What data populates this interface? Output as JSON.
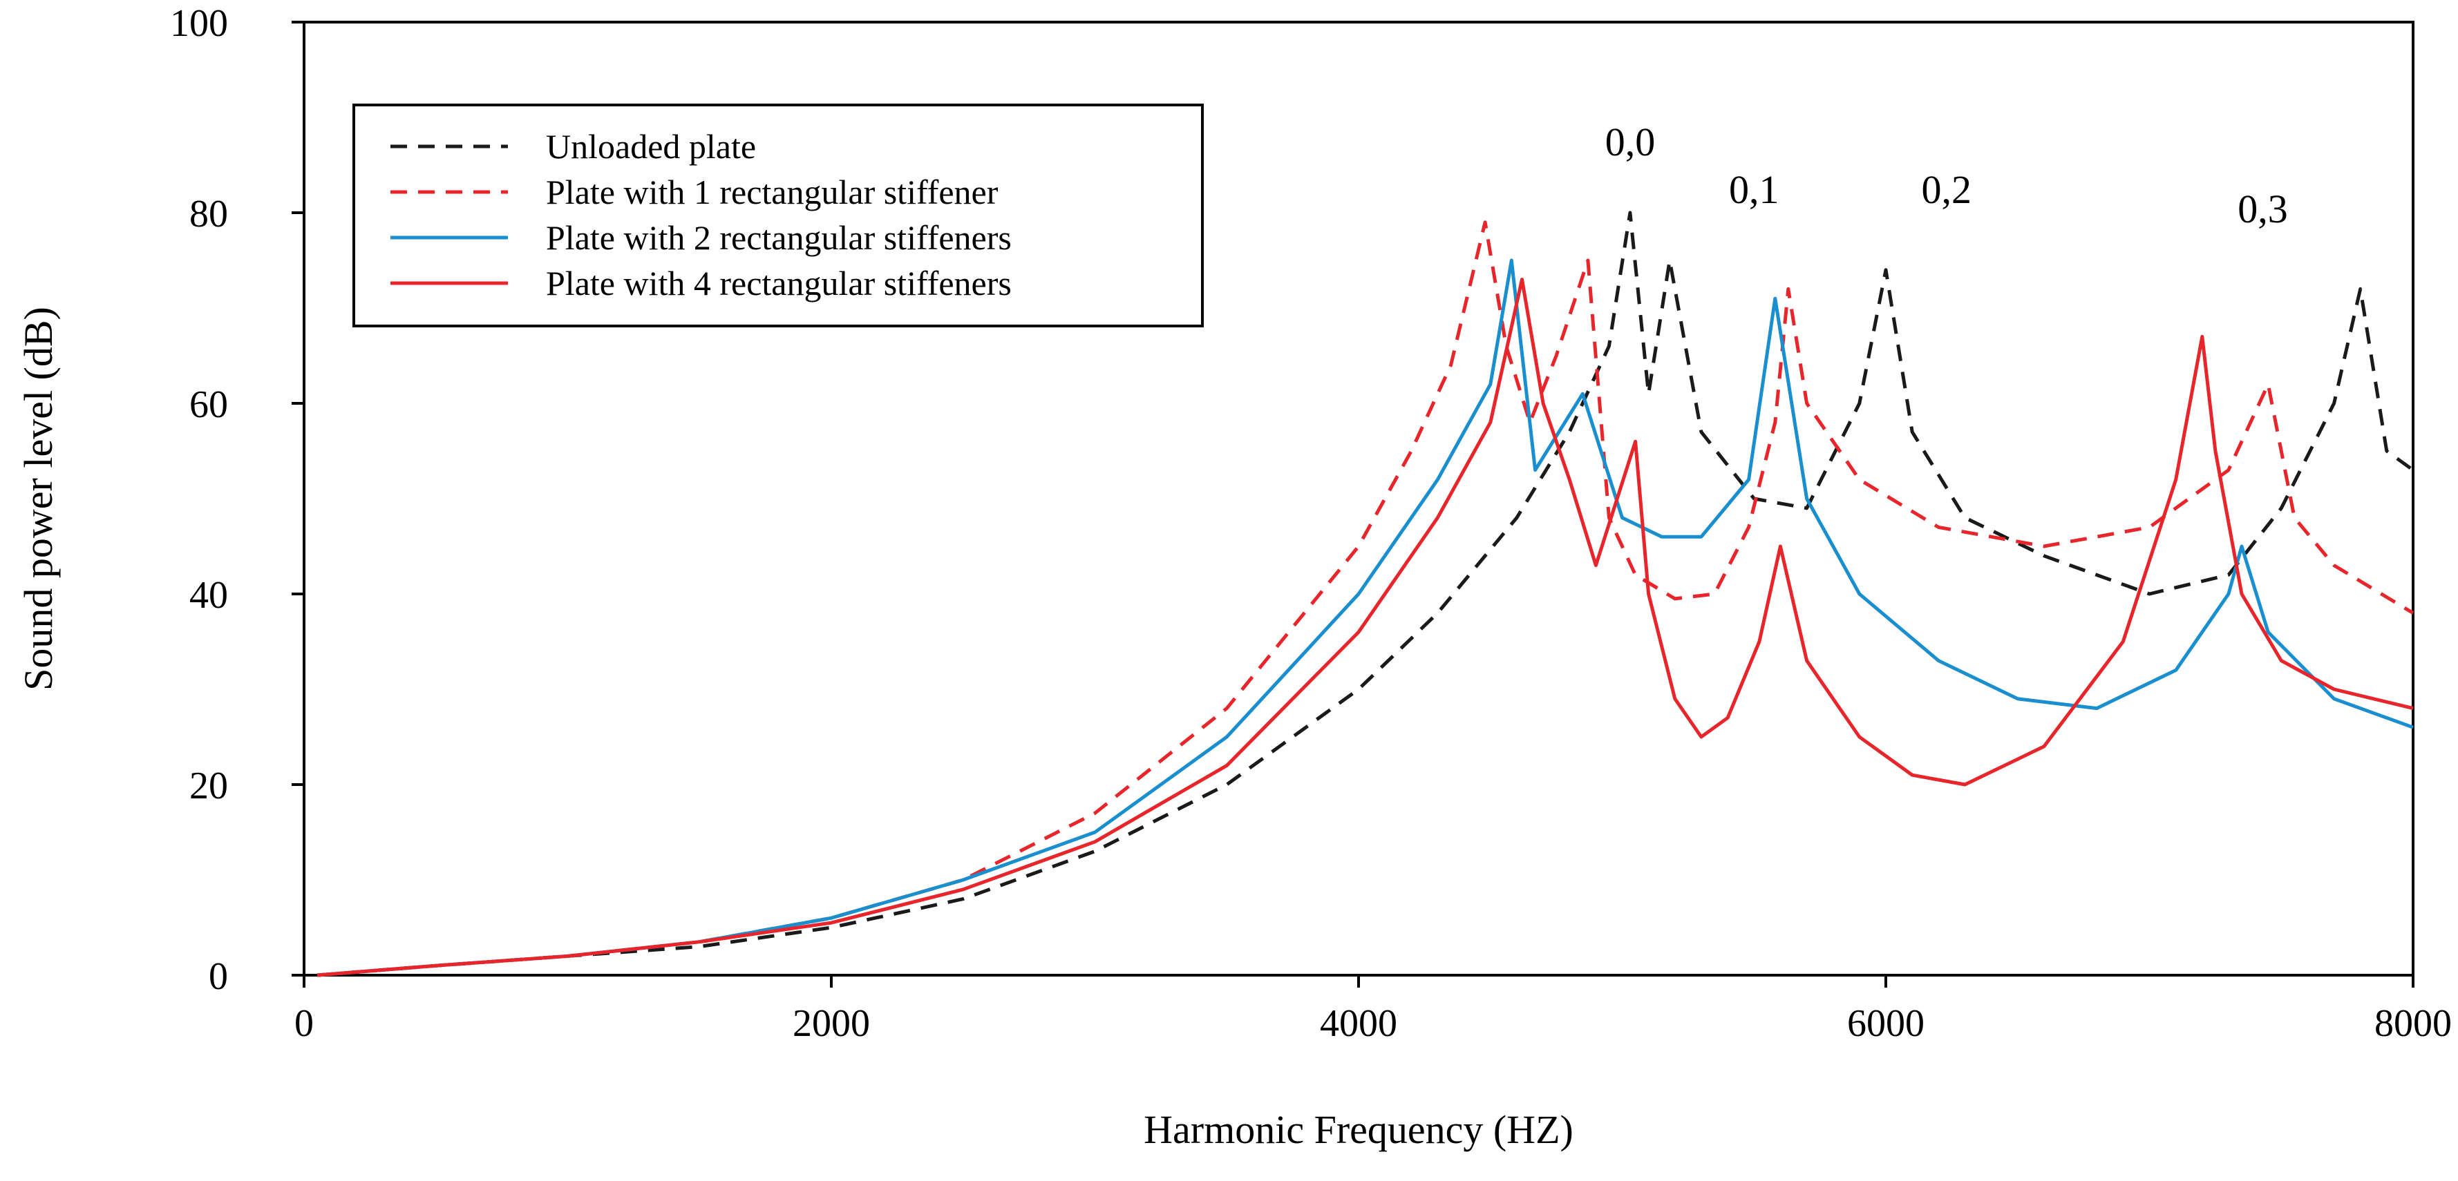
{
  "chart_data": {
    "type": "line",
    "xlabel": "Harmonic Frequency (HZ)",
    "ylabel": "Sound power level (dB)",
    "xlim": [
      0,
      8000
    ],
    "ylim": [
      0,
      100
    ],
    "x_ticks": [
      0,
      2000,
      4000,
      6000,
      8000
    ],
    "y_ticks": [
      0,
      20,
      40,
      60,
      80,
      100
    ],
    "grid": false,
    "legend_position": "top-left",
    "annotations": [
      {
        "text": "0,0",
        "x": 5030,
        "y": 86
      },
      {
        "text": "0,1",
        "x": 5500,
        "y": 81
      },
      {
        "text": "0,2",
        "x": 6230,
        "y": 81
      },
      {
        "text": "0,3",
        "x": 7430,
        "y": 79
      }
    ],
    "series": [
      {
        "name": "Unloaded plate",
        "color": "#1a1a1a",
        "dash": "dashed",
        "x": [
          50,
          500,
          1000,
          1500,
          2000,
          2500,
          3000,
          3500,
          4000,
          4300,
          4600,
          4800,
          4950,
          5030,
          5100,
          5180,
          5300,
          5500,
          5700,
          5900,
          6000,
          6100,
          6300,
          6600,
          7000,
          7300,
          7500,
          7700,
          7800,
          7900,
          8000
        ],
        "y": [
          0,
          1,
          2,
          3,
          5,
          8,
          13,
          20,
          30,
          38,
          48,
          57,
          66,
          80,
          61,
          75,
          57,
          50,
          49,
          60,
          74,
          57,
          48,
          44,
          40,
          42,
          49,
          60,
          72,
          55,
          53
        ]
      },
      {
        "name": "Plate with 1 rectangular stiffener",
        "color": "#e8252a",
        "dash": "dashed",
        "x": [
          50,
          500,
          1000,
          1500,
          2000,
          2500,
          3000,
          3500,
          4000,
          4200,
          4350,
          4480,
          4560,
          4650,
          4750,
          4870,
          4950,
          5050,
          5200,
          5350,
          5480,
          5580,
          5630,
          5700,
          5900,
          6200,
          6600,
          7000,
          7300,
          7450,
          7550,
          7700,
          8000
        ],
        "y": [
          0,
          1,
          2,
          3.5,
          6,
          10,
          17,
          28,
          45,
          55,
          64,
          79,
          66,
          58,
          65,
          75,
          48,
          42,
          39.5,
          40,
          47,
          58,
          72,
          60,
          52,
          47,
          45,
          47,
          53,
          62,
          48,
          43,
          38
        ]
      },
      {
        "name": "Plate with 2 rectangular stiffeners",
        "color": "#1a8fd0",
        "dash": "solid",
        "x": [
          50,
          500,
          1000,
          1500,
          2000,
          2500,
          3000,
          3500,
          4000,
          4300,
          4500,
          4580,
          4670,
          4850,
          5000,
          5150,
          5300,
          5480,
          5580,
          5700,
          5900,
          6200,
          6500,
          6800,
          7100,
          7300,
          7350,
          7450,
          7700,
          8000
        ],
        "y": [
          0,
          1,
          2,
          3.5,
          6,
          10,
          15,
          25,
          40,
          52,
          62,
          75,
          53,
          61,
          48,
          46,
          46,
          52,
          71,
          50,
          40,
          33,
          29,
          28,
          32,
          40,
          45,
          36,
          29,
          26
        ]
      },
      {
        "name": "Plate with 4 rectangular stiffeners",
        "color": "#e8252a",
        "dash": "solid",
        "x": [
          50,
          500,
          1000,
          1500,
          2000,
          2500,
          3000,
          3500,
          4000,
          4300,
          4500,
          4620,
          4700,
          4800,
          4900,
          5050,
          5100,
          5200,
          5300,
          5400,
          5520,
          5600,
          5700,
          5900,
          6100,
          6300,
          6600,
          6900,
          7100,
          7200,
          7250,
          7350,
          7500,
          7700,
          8000
        ],
        "y": [
          0,
          1,
          2,
          3.5,
          5.5,
          9,
          14,
          22,
          36,
          48,
          58,
          73,
          60,
          52,
          43,
          56,
          40,
          29,
          25,
          27,
          35,
          45,
          33,
          25,
          21,
          20,
          24,
          35,
          52,
          67,
          55,
          40,
          33,
          30,
          28
        ]
      }
    ]
  }
}
